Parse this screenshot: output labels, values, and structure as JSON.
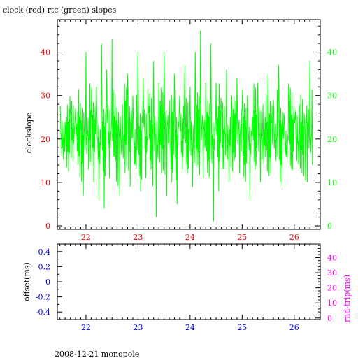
{
  "title": "clock (red) rtc (green) slopes",
  "footer": "2008-12-21 monopole",
  "colors": {
    "clock": "#ff0000",
    "rtc": "#00ff00",
    "offset": "#0000ff",
    "rndtrip": "#ff00ff",
    "axis": "#000000"
  },
  "chart_data": [
    {
      "type": "line",
      "title": "clock (red) rtc (green) slopes",
      "xlabel": "",
      "ylabel": "clockslope",
      "xlim": [
        21.45,
        26.5
      ],
      "ylim": [
        -0.8,
        47.5
      ],
      "y_right_lim": [
        -0.8,
        47.5
      ],
      "x_ticks": [
        22,
        23,
        24,
        25,
        26
      ],
      "y_ticks": [
        0,
        10,
        20,
        30,
        40
      ],
      "y_right_ticks": [
        0,
        10,
        20,
        30,
        40
      ],
      "grid": false,
      "series": [
        {
          "name": "rtc",
          "color": "#00ff00",
          "x": [
            21.5,
            21.55,
            21.6,
            21.65,
            21.7,
            21.75,
            21.8,
            21.85,
            21.9,
            21.95,
            22.0,
            22.05,
            22.1,
            22.15,
            22.2,
            22.25,
            22.3,
            22.35,
            22.4,
            22.45,
            22.5,
            22.55,
            22.6,
            22.65,
            22.7,
            22.75,
            22.8,
            22.85,
            22.9,
            22.95,
            23.0,
            23.05,
            23.1,
            23.15,
            23.2,
            23.25,
            23.3,
            23.35,
            23.4,
            23.45,
            23.5,
            23.55,
            23.6,
            23.65,
            23.7,
            23.75,
            23.8,
            23.85,
            23.9,
            23.95,
            24.0,
            24.05,
            24.1,
            24.15,
            24.2,
            24.25,
            24.3,
            24.35,
            24.4,
            24.45,
            24.5,
            24.55,
            24.6,
            24.65,
            24.7,
            24.75,
            24.8,
            24.85,
            24.9,
            24.95,
            25.0,
            25.05,
            25.1,
            25.15,
            25.2,
            25.25,
            25.3,
            25.35,
            25.4,
            25.45,
            25.5,
            25.55,
            25.6,
            25.65,
            25.7,
            25.75,
            25.8,
            25.85,
            25.9,
            25.95,
            26.0,
            26.05,
            26.1,
            26.15,
            26.2,
            26.25,
            26.3,
            26.35
          ],
          "y": [
            27,
            18,
            24,
            17,
            26,
            15,
            27,
            14,
            22,
            7,
            40,
            13,
            25,
            10,
            32,
            6,
            42,
            4,
            36,
            11,
            43,
            16,
            22,
            7,
            28,
            12,
            35,
            9,
            30,
            14,
            40,
            8,
            34,
            11,
            26,
            13,
            38,
            2,
            33,
            12,
            40,
            7,
            29,
            10,
            35,
            5,
            30,
            13,
            37,
            12,
            32,
            9,
            40,
            14,
            45,
            11,
            33,
            15,
            42,
            1,
            33,
            8,
            28,
            13,
            36,
            10,
            30,
            15,
            34,
            12,
            27,
            14,
            30,
            6,
            25,
            13,
            33,
            10,
            28,
            16,
            35,
            12,
            29,
            15,
            37,
            14,
            26,
            16,
            31,
            13,
            25,
            15,
            28,
            12,
            24,
            10,
            38,
            14
          ]
        }
      ]
    },
    {
      "type": "line",
      "title": "",
      "xlabel": "",
      "ylabel": "offset(ms)",
      "ylabel_right": "rnd-trip(ms)",
      "xlim": [
        21.45,
        26.5
      ],
      "ylim": [
        -0.5,
        0.5
      ],
      "y_right_lim": [
        -1,
        49
      ],
      "x_ticks": [
        22,
        23,
        24,
        25,
        26
      ],
      "y_ticks": [
        -0.4,
        -0.2,
        0,
        0.2,
        0.4
      ],
      "y_tick_labels": [
        "-0.4",
        "-0.2",
        "0",
        "0.2",
        "0.4"
      ],
      "y_right_ticks": [
        0,
        10,
        20,
        30,
        40
      ],
      "grid": false,
      "series": []
    }
  ]
}
